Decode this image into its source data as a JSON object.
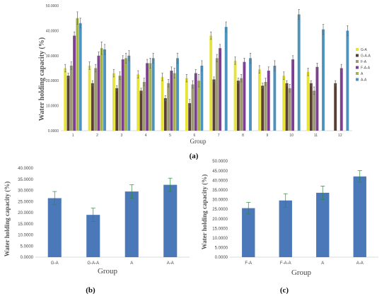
{
  "chart_data": [
    {
      "type": "bar",
      "panel_label": "(a)",
      "ylabel": "Water holding capacity (%)",
      "xlabel": "Group",
      "ylim": [
        0,
        50
      ],
      "yticks": [
        "0.0000",
        "10.0000",
        "20.0000",
        "30.0000",
        "40.0000",
        "50.0000"
      ],
      "categories": [
        "1",
        "2",
        "3",
        "4",
        "5",
        "6",
        "7",
        "8",
        "9",
        "10",
        "11",
        "12"
      ],
      "legend_position": "right",
      "series": [
        {
          "name": "G-A",
          "color": "#e6e33a",
          "values": [
            25,
            26,
            23,
            22.5,
            21.5,
            21,
            38,
            28,
            24.5,
            22,
            23.5,
            null
          ],
          "errors": [
            1.5,
            1.5,
            1.5,
            1.5,
            1.5,
            1.5,
            1.5,
            1.5,
            1.5,
            1.5,
            1.5,
            null
          ]
        },
        {
          "name": "G-A-A",
          "color": "#5a3f35",
          "values": [
            22,
            19,
            17,
            16,
            13,
            11,
            20.5,
            20,
            18,
            19,
            19,
            19
          ],
          "errors": [
            1.0,
            1.0,
            1.0,
            1.0,
            1.0,
            1.5,
            1.0,
            1.0,
            1.0,
            1.0,
            1.0,
            1.0
          ]
        },
        {
          "name": "F-A",
          "color": "#9c9a70",
          "values": [
            26,
            25,
            22,
            19.5,
            19,
            18.5,
            29,
            21,
            19.5,
            17,
            16,
            null
          ],
          "errors": [
            1.5,
            1.5,
            1.5,
            1.5,
            1.5,
            1.5,
            1.5,
            1.5,
            1.5,
            1.5,
            1.5,
            null
          ]
        },
        {
          "name": "F-A-A",
          "color": "#7d3f91",
          "values": [
            38,
            30,
            28.5,
            27,
            24,
            23,
            33,
            27.5,
            24,
            28.5,
            25.5,
            25
          ],
          "errors": [
            1.5,
            1.5,
            1.5,
            1.5,
            1.5,
            1.5,
            1.5,
            1.5,
            1.5,
            1.5,
            1.5,
            1.5
          ]
        },
        {
          "name": "A",
          "color": "#a6b34a",
          "values": [
            45,
            33,
            29,
            27,
            23,
            20,
            null,
            null,
            null,
            null,
            null,
            null
          ],
          "errors": [
            2.5,
            2.5,
            2.0,
            2.0,
            2.0,
            2.5,
            null,
            null,
            null,
            null,
            null,
            null
          ]
        },
        {
          "name": "A-A",
          "color": "#4e93bd",
          "values": [
            43,
            32.5,
            30,
            29,
            29,
            26,
            41.5,
            29,
            26,
            46.5,
            40.5,
            40
          ],
          "errors": [
            2.0,
            2.0,
            2.0,
            2.0,
            2.0,
            2.0,
            2.0,
            2.0,
            2.0,
            2.0,
            2.0,
            2.0
          ]
        }
      ]
    },
    {
      "type": "bar",
      "panel_label": "(b)",
      "ylabel": "Water holding capacity (%)",
      "xlabel": "Group",
      "ylim": [
        0,
        40
      ],
      "yticks": [
        "0.0000",
        "5.0000",
        "10.0000",
        "15.0000",
        "20.0000",
        "25.0000",
        "30.0000",
        "35.0000",
        "40.0000"
      ],
      "categories": [
        "G-A",
        "G-A-A",
        "A",
        "A-A"
      ],
      "color": "#4a78b8",
      "values": [
        26.5,
        19,
        29.5,
        32.5
      ],
      "errors": [
        3,
        3,
        3,
        3
      ]
    },
    {
      "type": "bar",
      "panel_label": "(c)",
      "ylabel": "Water holding capacity (%)",
      "xlabel": "Group",
      "ylim": [
        0,
        50
      ],
      "yticks": [
        "0.0000",
        "5.0000",
        "10.0000",
        "15.0000",
        "20.0000",
        "25.0000",
        "30.0000",
        "35.0000",
        "40.0000",
        "45.0000",
        "50.0000"
      ],
      "categories": [
        "F-A",
        "F-A-A",
        "A",
        "A-A"
      ],
      "color": "#4a78b8",
      "values": [
        25.5,
        29.5,
        33.5,
        42
      ],
      "errors": [
        3,
        3.5,
        3.5,
        3
      ]
    }
  ]
}
